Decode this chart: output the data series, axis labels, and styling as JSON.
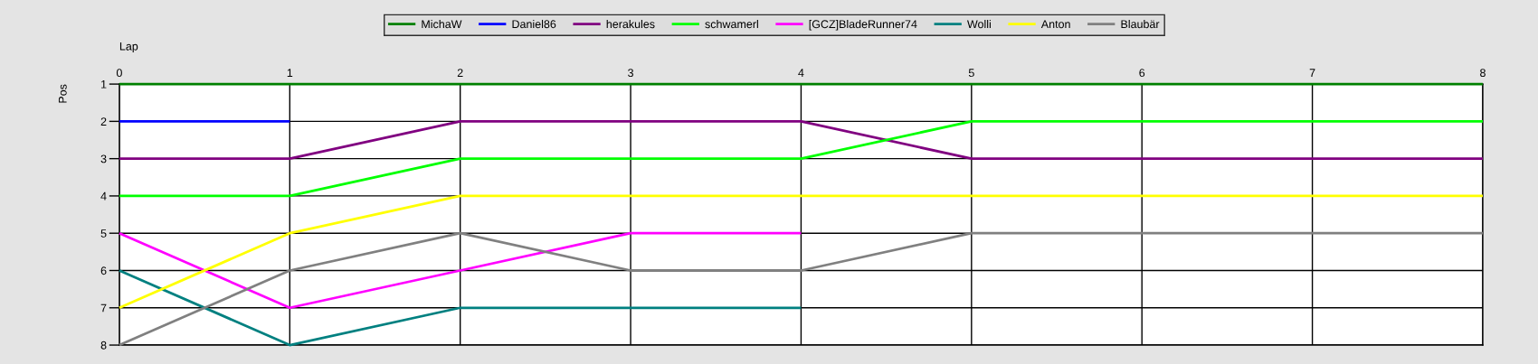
{
  "chart_data": {
    "type": "line",
    "xlabel": "Lap",
    "ylabel": "Pos",
    "x": [
      0,
      1,
      2,
      3,
      4,
      5,
      6,
      7,
      8
    ],
    "series": [
      {
        "name": "MichaW",
        "color": "#008000",
        "values": [
          1,
          1,
          1,
          1,
          1,
          1,
          1,
          1,
          1
        ]
      },
      {
        "name": "Daniel86",
        "color": "#0000ff",
        "values": [
          2,
          2,
          null,
          null,
          null,
          null,
          null,
          null,
          null
        ]
      },
      {
        "name": "herakules",
        "color": "#800080",
        "values": [
          3,
          3,
          2,
          2,
          2,
          3,
          3,
          3,
          3
        ]
      },
      {
        "name": "schwamerl",
        "color": "#00ff00",
        "values": [
          4,
          4,
          3,
          3,
          3,
          2,
          2,
          2,
          2
        ]
      },
      {
        "name": "[GCZ]BladeRunner74",
        "color": "#ff00ff",
        "values": [
          5,
          7,
          6,
          5,
          5,
          null,
          null,
          null,
          null
        ]
      },
      {
        "name": "Wolli",
        "color": "#008080",
        "values": [
          6,
          8,
          7,
          7,
          7,
          null,
          null,
          null,
          null
        ]
      },
      {
        "name": "Anton",
        "color": "#ffff00",
        "values": [
          7,
          5,
          4,
          4,
          4,
          4,
          4,
          4,
          4
        ]
      },
      {
        "name": "Blaubär",
        "color": "#808080",
        "values": [
          8,
          6,
          5,
          6,
          6,
          5,
          5,
          5,
          5
        ]
      }
    ],
    "xlim": [
      0,
      8
    ],
    "xticks": [
      0,
      1,
      2,
      3,
      4,
      5,
      6,
      7,
      8
    ],
    "ylim": [
      8,
      1
    ],
    "yticks": [
      1,
      2,
      3,
      4,
      5,
      6,
      7,
      8
    ],
    "grid": true,
    "legend": "top",
    "marker": "none",
    "line_style": "solid"
  }
}
